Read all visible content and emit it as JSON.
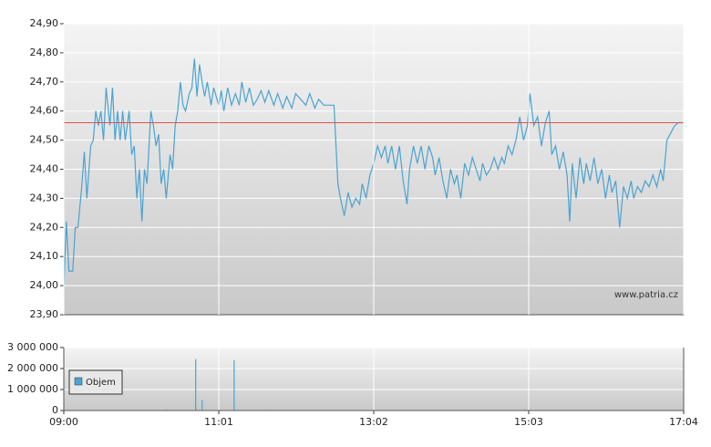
{
  "chart_data": [
    {
      "type": "line",
      "color": "#4aa3d0",
      "reference_line": 24.56,
      "reference_color": "#d9534f",
      "annotation": "www.patria.cz",
      "xlim": [
        540,
        1024
      ],
      "ylim": [
        23.9,
        24.9
      ],
      "yticks": [
        {
          "value": 23.9,
          "label": "23,90"
        },
        {
          "value": 24.0,
          "label": "24,00"
        },
        {
          "value": 24.1,
          "label": "24,10"
        },
        {
          "value": 24.2,
          "label": "24,20"
        },
        {
          "value": 24.3,
          "label": "24,30"
        },
        {
          "value": 24.4,
          "label": "24,40"
        },
        {
          "value": 24.5,
          "label": "24,50"
        },
        {
          "value": 24.6,
          "label": "24,60"
        },
        {
          "value": 24.7,
          "label": "24,70"
        },
        {
          "value": 24.8,
          "label": "24,80"
        },
        {
          "value": 24.9,
          "label": "24,90"
        }
      ],
      "x": [
        540,
        542,
        544,
        547,
        549,
        551,
        554,
        556,
        558,
        561,
        563,
        565,
        567,
        569,
        571,
        573,
        576,
        578,
        580,
        582,
        584,
        586,
        588,
        591,
        593,
        595,
        597,
        599,
        601,
        603,
        605,
        608,
        610,
        612,
        614,
        616,
        618,
        620,
        623,
        625,
        627,
        629,
        631,
        633,
        635,
        638,
        640,
        642,
        644,
        646,
        648,
        650,
        652,
        655,
        657,
        659,
        661,
        663,
        665,
        668,
        671,
        674,
        677,
        679,
        682,
        685,
        688,
        691,
        694,
        697,
        700,
        704,
        707,
        711,
        714,
        718,
        721,
        725,
        729,
        732,
        736,
        739,
        743,
        746,
        751,
        754,
        756,
        759,
        762,
        765,
        768,
        771,
        773,
        776,
        779,
        782,
        785,
        788,
        791,
        793,
        796,
        799,
        802,
        805,
        808,
        810,
        813,
        816,
        819,
        822,
        825,
        828,
        830,
        833,
        836,
        839,
        842,
        845,
        847,
        850,
        853,
        856,
        859,
        862,
        865,
        867,
        870,
        873,
        876,
        879,
        882,
        884,
        887,
        890,
        893,
        896,
        899,
        902,
        904,
        907,
        910,
        913,
        916,
        919,
        921,
        924,
        927,
        930,
        933,
        935,
        937,
        940,
        943,
        946,
        948,
        951,
        954,
        957,
        960,
        963,
        966,
        968,
        971,
        974,
        977,
        980,
        983,
        985,
        988,
        991,
        994,
        997,
        1000,
        1003,
        1006,
        1008,
        1011,
        1017,
        1020,
        1024
      ],
      "values": [
        24.0,
        24.22,
        24.05,
        24.05,
        24.2,
        24.2,
        24.34,
        24.46,
        24.3,
        24.48,
        24.5,
        24.6,
        24.55,
        24.6,
        24.5,
        24.68,
        24.55,
        24.68,
        24.5,
        24.6,
        24.5,
        24.6,
        24.5,
        24.6,
        24.45,
        24.48,
        24.3,
        24.4,
        24.22,
        24.4,
        24.35,
        24.6,
        24.55,
        24.48,
        24.52,
        24.35,
        24.4,
        24.3,
        24.45,
        24.4,
        24.55,
        24.6,
        24.7,
        24.62,
        24.6,
        24.66,
        24.68,
        24.78,
        24.65,
        24.76,
        24.7,
        24.65,
        24.7,
        24.62,
        24.68,
        24.65,
        24.62,
        24.67,
        24.6,
        24.68,
        24.62,
        24.66,
        24.62,
        24.7,
        24.63,
        24.68,
        24.62,
        24.64,
        24.67,
        24.63,
        24.67,
        24.62,
        24.66,
        24.61,
        24.65,
        24.61,
        24.66,
        24.64,
        24.62,
        24.66,
        24.61,
        24.64,
        24.62,
        24.62,
        24.62,
        24.35,
        24.3,
        24.24,
        24.32,
        24.27,
        24.3,
        24.28,
        24.35,
        24.3,
        24.38,
        24.42,
        24.48,
        24.44,
        24.48,
        24.42,
        24.48,
        24.4,
        24.48,
        24.36,
        24.28,
        24.4,
        24.48,
        24.42,
        24.48,
        24.4,
        24.48,
        24.44,
        24.38,
        24.44,
        24.36,
        24.3,
        24.4,
        24.35,
        24.38,
        24.3,
        24.42,
        24.38,
        24.44,
        24.4,
        24.36,
        24.42,
        24.38,
        24.4,
        24.44,
        24.4,
        24.44,
        24.42,
        24.48,
        24.45,
        24.5,
        24.58,
        24.5,
        24.55,
        24.66,
        24.55,
        24.58,
        24.48,
        24.56,
        24.6,
        24.45,
        24.48,
        24.4,
        24.46,
        24.38,
        24.22,
        24.42,
        24.3,
        24.44,
        24.35,
        24.42,
        24.36,
        24.44,
        24.35,
        24.4,
        24.3,
        24.38,
        24.32,
        24.36,
        24.2,
        24.34,
        24.3,
        24.36,
        24.3,
        24.34,
        24.32,
        24.36,
        24.34,
        24.38,
        24.34,
        24.4,
        24.36,
        24.5,
        24.55,
        24.56,
        24.56
      ]
    },
    {
      "type": "bar",
      "color": "#4aa3d0",
      "legend": "Objem",
      "xlim": [
        540,
        1024
      ],
      "ylim": [
        0,
        3000000
      ],
      "xticks": [
        {
          "value": 540,
          "label": "09:00"
        },
        {
          "value": 661,
          "label": "11:01"
        },
        {
          "value": 782,
          "label": "13:02"
        },
        {
          "value": 903,
          "label": "15:03"
        },
        {
          "value": 1024,
          "label": "17:04"
        }
      ],
      "yticks": [
        0,
        {
          "value": 1000000,
          "label": "1 000 000"
        },
        {
          "value": 2000000,
          "label": "2 000 000"
        },
        {
          "value": 3000000,
          "label": "3 000 000"
        }
      ],
      "x": [
        620,
        643,
        648,
        673,
        700,
        900
      ],
      "values": [
        40000,
        2450000,
        500000,
        2400000,
        30000,
        50000
      ]
    }
  ]
}
